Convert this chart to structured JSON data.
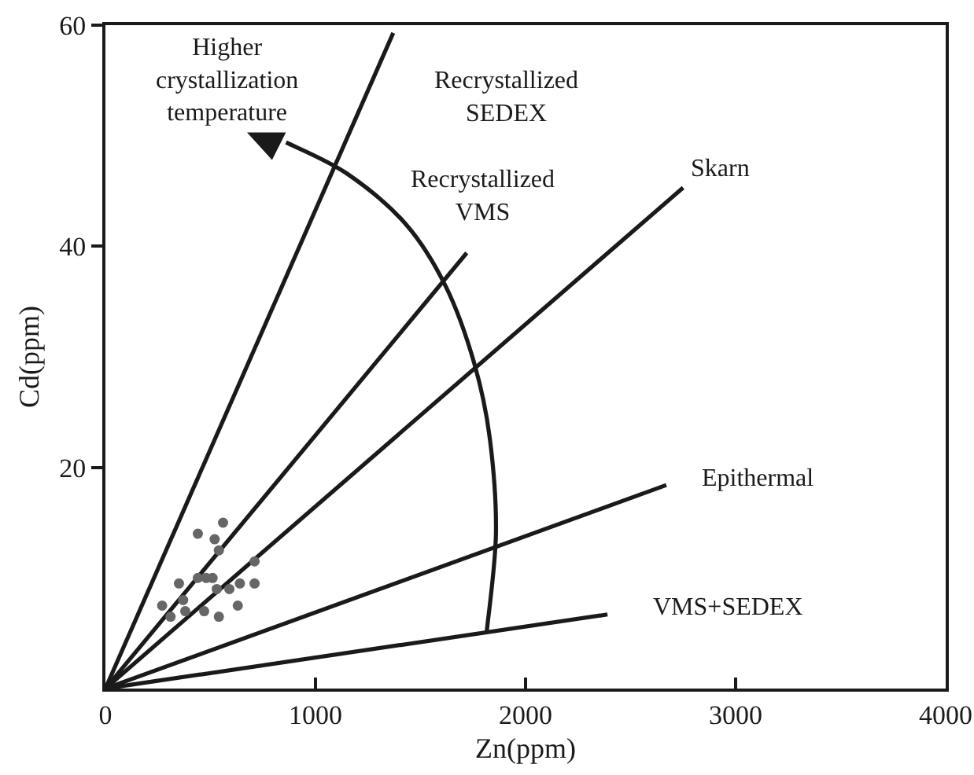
{
  "chart_data": {
    "type": "scatter",
    "xlabel": "Zn(ppm)",
    "ylabel": "Cd(ppm)",
    "xlim": [
      0,
      4000
    ],
    "ylim": [
      0,
      60
    ],
    "xticks": [
      0,
      1000,
      2000,
      3000,
      4000
    ],
    "yticks": [
      20,
      40,
      60
    ],
    "grid": false,
    "marker": "circle",
    "series": [
      {
        "color": "#666666",
        "x": [
          440,
          560,
          520,
          540,
          710,
          350,
          440,
          480,
          510,
          640,
          710,
          270,
          370,
          530,
          590,
          380,
          470,
          630,
          310,
          540
        ],
        "values": [
          14,
          15,
          13.5,
          12.5,
          11.5,
          9.5,
          10,
          10,
          10,
          9.5,
          9.5,
          7.5,
          8,
          9,
          9,
          7,
          7,
          7.5,
          6.5,
          6.5
        ]
      },
      {
        "type": "line",
        "color": "#1a1a1a",
        "marker": "none",
        "x": [
          0,
          1370
        ],
        "values": [
          0,
          59.3
        ]
      },
      {
        "type": "line",
        "color": "#1a1a1a",
        "marker": "none",
        "x": [
          0,
          1720
        ],
        "values": [
          0,
          39.4
        ]
      },
      {
        "type": "line",
        "color": "#1a1a1a",
        "marker": "none",
        "x": [
          0,
          2750
        ],
        "values": [
          0,
          45.3
        ]
      },
      {
        "type": "line",
        "color": "#1a1a1a",
        "marker": "none",
        "x": [
          0,
          2670
        ],
        "values": [
          0,
          18.4
        ]
      },
      {
        "type": "line",
        "color": "#1a1a1a",
        "marker": "none",
        "x": [
          0,
          2390
        ],
        "values": [
          0,
          6.7
        ]
      }
    ],
    "annotations": [
      "Higher\ncrystallization\ntemperature",
      "Recrystallized\nSEDEX",
      "Recrystallized\nVMS",
      "Skarn",
      "Epithermal",
      "VMS+SEDEX"
    ]
  }
}
